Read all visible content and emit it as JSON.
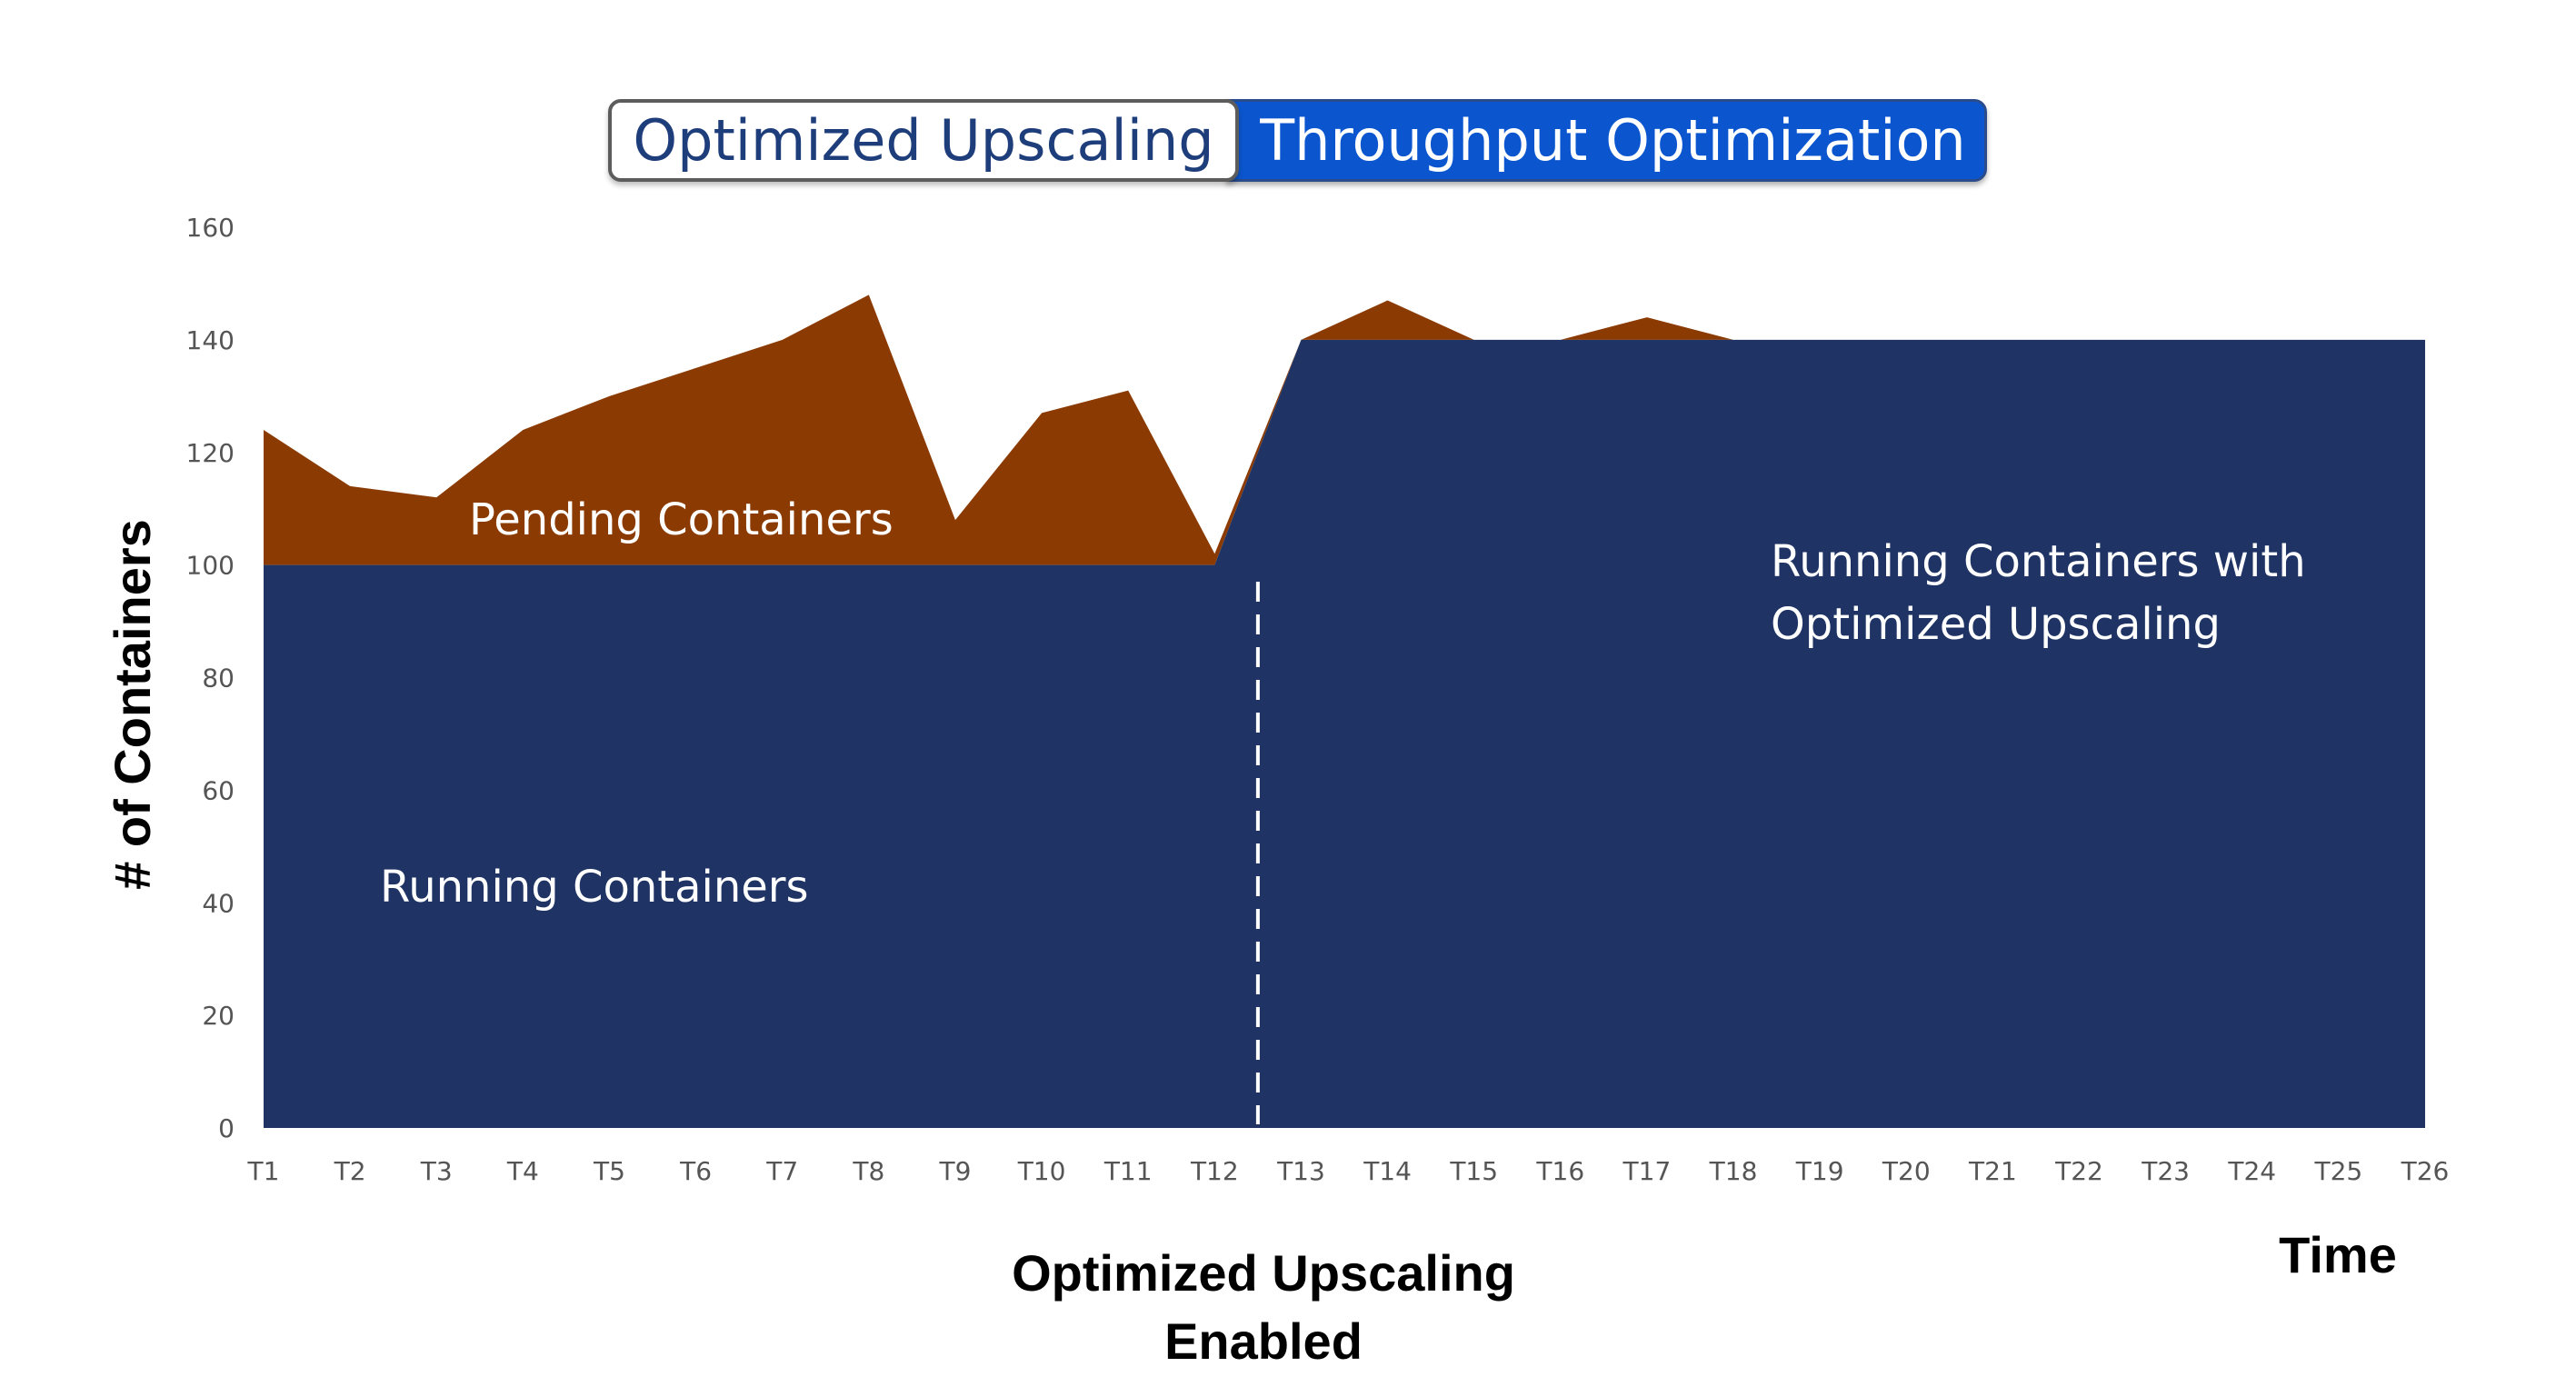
{
  "tabs": {
    "left": "Optimized Upscaling",
    "right": "Throughput Optimization"
  },
  "colors": {
    "running": "#1f3464",
    "pending": "#8b3a02",
    "axis_text": "#555555",
    "dashed_line": "#ffffff",
    "tab_active_bg": "#0b56cf",
    "tab_text": "#1e3d7b"
  },
  "chart_data": {
    "type": "area",
    "title": "",
    "xlabel": "Time",
    "ylabel": "# of Containers",
    "ylim": [
      0,
      160
    ],
    "yticks": [
      0,
      20,
      40,
      60,
      80,
      100,
      120,
      140,
      160
    ],
    "grid": false,
    "stacked": true,
    "categories": [
      "T1",
      "T2",
      "T3",
      "T4",
      "T5",
      "T6",
      "T7",
      "T8",
      "T9",
      "T10",
      "T11",
      "T12",
      "T13",
      "T14",
      "T15",
      "T16",
      "T17",
      "T18",
      "T19",
      "T20",
      "T21",
      "T22",
      "T23",
      "T24",
      "T25",
      "T26"
    ],
    "series": [
      {
        "name": "Running Containers",
        "key": "running",
        "values": [
          100,
          100,
          100,
          100,
          100,
          100,
          100,
          100,
          100,
          100,
          100,
          100,
          140,
          140,
          140,
          140,
          140,
          140,
          140,
          140,
          140,
          140,
          140,
          140,
          140,
          140
        ]
      },
      {
        "name": "Pending Containers",
        "key": "pending",
        "values": [
          24,
          14,
          12,
          24,
          30,
          35,
          40,
          48,
          8,
          27,
          31,
          2,
          0,
          7,
          0,
          0,
          4,
          0,
          0,
          0,
          0,
          0,
          0,
          0,
          0,
          0
        ]
      }
    ],
    "annotations": {
      "pending_label": "Pending Containers",
      "running_label": "Running Containers",
      "optimized_label_line1": "Running Containers with",
      "optimized_label_line2": "Optimized Upscaling",
      "marker_label_line1": "Optimized Upscaling",
      "marker_label_line2": "Enabled",
      "marker_between": [
        "T12",
        "T13"
      ]
    }
  }
}
